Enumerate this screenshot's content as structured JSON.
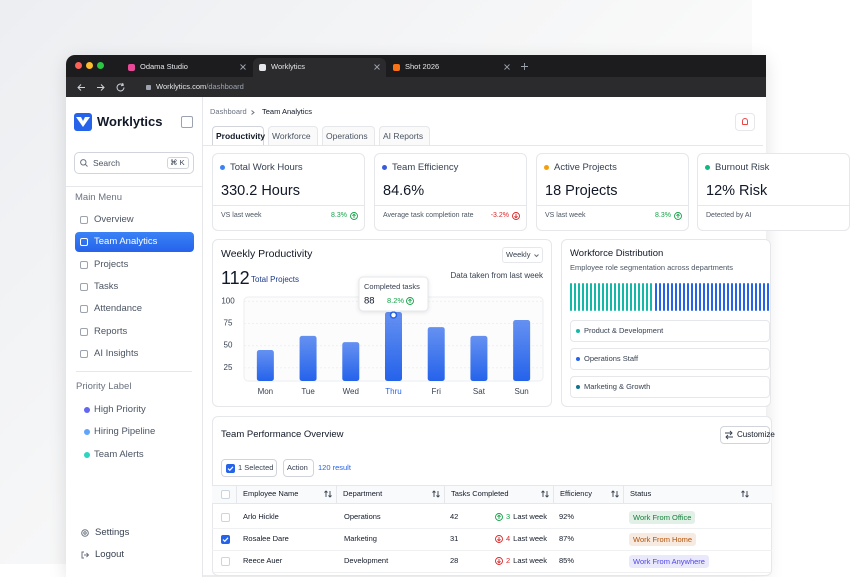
{
  "browser": {
    "tabs": [
      "Odama Studio",
      "Worklytics",
      "Shot 2026"
    ],
    "url_host": "Worklytics.com",
    "url_path": "/dashboard"
  },
  "sidebar": {
    "brand": "Worklytics",
    "search": "Search",
    "shortcut": "⌘ K",
    "main_menu_title": "Main Menu",
    "main_menu": [
      "Overview",
      "Team Analytics",
      "Projects",
      "Tasks",
      "Attendance",
      "Reports",
      "AI Insights"
    ],
    "priority_title": "Priority Label",
    "priority": [
      {
        "label": "High Priority",
        "color": "#6366f1"
      },
      {
        "label": "Hiring Pipeline",
        "color": "#60a5fa"
      },
      {
        "label": "Team Alerts",
        "color": "#2dd4bf"
      }
    ],
    "settings": "Settings",
    "logout": "Logout"
  },
  "breadcrumb": [
    "Dashboard",
    "Team Analytics"
  ],
  "tabs": [
    "Productivity",
    "Workforce",
    "Operations",
    "AI Reports"
  ],
  "cards": [
    {
      "title": "Total Work Hours",
      "value": "330.2 Hours",
      "footer": "VS last week",
      "change": "8.3%",
      "trend": "up",
      "dot": "#3b82f6"
    },
    {
      "title": "Team Efficiency",
      "value": "84.6%",
      "footer": "Average task completion rate",
      "change": "-3.2%",
      "trend": "down",
      "dot": "#3b5bdb"
    },
    {
      "title": "Active Projects",
      "value": "18 Projects",
      "footer": "VS last week",
      "change": "8.3%",
      "trend": "up",
      "dot": "#f59e0b"
    },
    {
      "title": "Burnout Risk",
      "value": "12% Risk",
      "footer": "Detected by AI",
      "dot": "#10b981"
    }
  ],
  "chart_data": {
    "type": "bar",
    "title": "Weekly Productivity",
    "period": "Weekly",
    "total": 112,
    "total_label": "Total Projects",
    "note": "Data taken from last week",
    "categories": [
      "Mon",
      "Tue",
      "Wed",
      "Thru",
      "Fri",
      "Sat",
      "Sun"
    ],
    "values": [
      45,
      61,
      54,
      88,
      71,
      61,
      79
    ],
    "color": "#2563eb",
    "ylim": [
      10,
      105
    ],
    "yticks": [
      25,
      50,
      75,
      100
    ],
    "grid": true,
    "highlight": 3,
    "tooltip": {
      "title": "Completed tasks",
      "change": "8.2%"
    }
  },
  "workforce": {
    "title": "Workforce Distribution",
    "subtitle": "Employee role segmentation across departments",
    "segments": [
      {
        "label": "Product & Development",
        "color": "#14b8a6"
      },
      {
        "label": "Operations Staff",
        "color": "#2563eb"
      },
      {
        "label": "Marketing & Growth",
        "color": "#0e7490"
      }
    ]
  },
  "table": {
    "title": "Team Performance Overview",
    "button": "Customize",
    "selected": "1 Selected",
    "action": "Action",
    "result": "120 result",
    "columns": [
      "Employee Name",
      "Department",
      "Tasks Completed",
      "Efficiency",
      "Status"
    ],
    "rows": [
      {
        "name": "Arlo Hickle",
        "department": "Operations",
        "tasks": 42,
        "change": 3,
        "change_label": "Last week",
        "trend": "up",
        "efficiency": "92%",
        "status": "Work From Office",
        "status_color": "#15803d",
        "checked": false
      },
      {
        "name": "Rosalee Dare",
        "department": "Marketing",
        "tasks": 31,
        "change": 4,
        "change_label": "Last week",
        "trend": "down",
        "efficiency": "87%",
        "status": "Work From Home",
        "status_color": "#b45309",
        "checked": true
      },
      {
        "name": "Reece Auer",
        "department": "Development",
        "tasks": 28,
        "change": 2,
        "change_label": "Last week",
        "trend": "down",
        "efficiency": "85%",
        "status": "Work From Anywhere",
        "status_color": "#4f46e5",
        "checked": false
      }
    ]
  }
}
